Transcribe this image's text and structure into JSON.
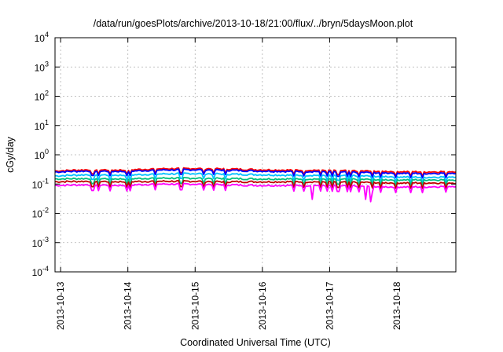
{
  "chart_data": {
    "type": "line",
    "title": "/data/run/goesPlots/archive/2013-10-18/21:00/flux/../bryn/5daysMoon.plot",
    "xlabel": "Coordinated Universal Time (UTC)",
    "ylabel": "cGy/day",
    "y_scale": "log",
    "ylim": [
      0.0001,
      10000
    ],
    "y_ticks": [
      {
        "base": "10",
        "exp": "-4"
      },
      {
        "base": "10",
        "exp": "-3"
      },
      {
        "base": "10",
        "exp": "-2"
      },
      {
        "base": "10",
        "exp": "-1"
      },
      {
        "base": "10",
        "exp": "0"
      },
      {
        "base": "10",
        "exp": "1"
      },
      {
        "base": "10",
        "exp": "2"
      },
      {
        "base": "10",
        "exp": "3"
      },
      {
        "base": "10",
        "exp": "4"
      }
    ],
    "xlim": [
      "2013-10-12T22:00",
      "2013-10-18T21:00"
    ],
    "x_ticks": [
      "2013-10-13",
      "2013-10-14",
      "2013-10-15",
      "2013-10-16",
      "2013-10-17",
      "2013-10-18"
    ],
    "grid": true,
    "legend": "none",
    "series": [
      {
        "color": "#ff0000",
        "typical": 0.3,
        "x_days": [
          0,
          0.5,
          1,
          1.5,
          2,
          2.5,
          3,
          3.5,
          4,
          4.5,
          5,
          5.5,
          5.96
        ],
        "values": [
          0.28,
          0.31,
          0.3,
          0.33,
          0.34,
          0.33,
          0.31,
          0.3,
          0.3,
          0.28,
          0.27,
          0.26,
          0.27
        ]
      },
      {
        "color": "#0000ff",
        "typical": 0.27,
        "x_days": [
          0,
          0.5,
          1,
          1.5,
          2,
          2.5,
          3,
          3.5,
          4,
          4.5,
          5,
          5.5,
          5.96
        ],
        "values": [
          0.26,
          0.28,
          0.27,
          0.3,
          0.31,
          0.3,
          0.28,
          0.27,
          0.27,
          0.25,
          0.24,
          0.23,
          0.24
        ]
      },
      {
        "color": "#00c0ff",
        "typical": 0.2,
        "x_days": [
          0,
          0.5,
          1,
          1.5,
          2,
          2.5,
          3,
          3.5,
          4,
          4.5,
          5,
          5.5,
          5.96
        ],
        "values": [
          0.19,
          0.21,
          0.2,
          0.22,
          0.23,
          0.22,
          0.21,
          0.2,
          0.2,
          0.19,
          0.18,
          0.17,
          0.18
        ]
      },
      {
        "color": "#00c080",
        "typical": 0.15,
        "x_days": [
          0,
          0.5,
          1,
          1.5,
          2,
          2.5,
          3,
          3.5,
          4,
          4.5,
          5,
          5.5,
          5.96
        ],
        "values": [
          0.15,
          0.155,
          0.15,
          0.16,
          0.16,
          0.155,
          0.15,
          0.15,
          0.15,
          0.145,
          0.14,
          0.14,
          0.14
        ]
      },
      {
        "color": "#c00000",
        "typical": 0.12,
        "x_days": [
          0,
          0.5,
          1,
          1.5,
          2,
          2.5,
          3,
          3.5,
          4,
          4.5,
          5,
          5.5,
          5.96
        ],
        "values": [
          0.12,
          0.125,
          0.12,
          0.125,
          0.125,
          0.12,
          0.12,
          0.12,
          0.12,
          0.115,
          0.11,
          0.11,
          0.11
        ]
      },
      {
        "color": "#ff00ff",
        "typical": 0.095,
        "x_days": [
          0,
          0.5,
          1,
          1.5,
          2,
          2.5,
          3,
          3.5,
          4,
          4.5,
          5,
          5.5,
          5.96
        ],
        "values": [
          0.09,
          0.095,
          0.09,
          0.1,
          0.1,
          0.095,
          0.09,
          0.09,
          0.09,
          0.085,
          0.08,
          0.08,
          0.085
        ]
      }
    ],
    "dips": [
      {
        "x_day": 3.83,
        "value": 0.03
      },
      {
        "x_day": 4.62,
        "value": 0.03
      },
      {
        "x_day": 4.69,
        "value": 0.025
      }
    ]
  }
}
